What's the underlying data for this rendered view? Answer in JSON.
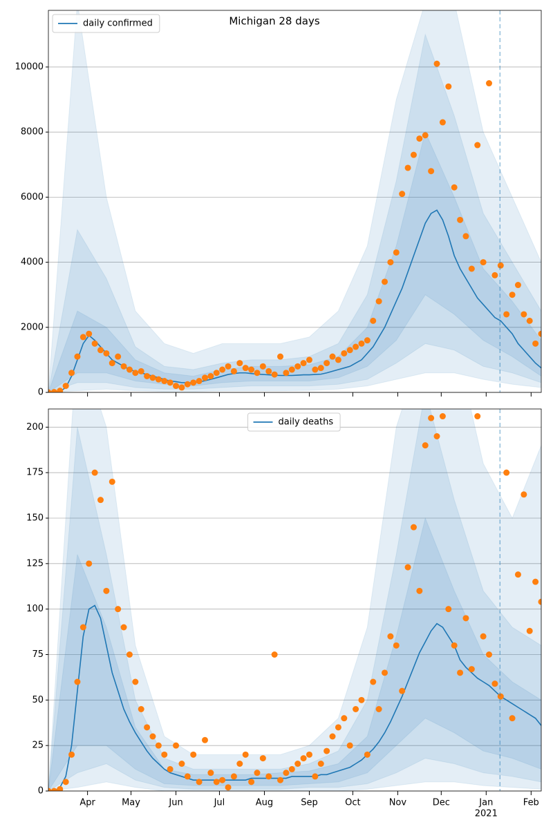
{
  "chart_data": [
    {
      "type": "line",
      "title": "Michigan 28 days",
      "x": [
        4,
        8,
        12,
        16,
        20,
        24,
        28,
        32,
        36,
        40,
        44,
        48,
        52,
        56,
        60,
        64,
        68,
        72,
        76,
        80,
        84,
        88,
        92,
        96,
        100,
        104,
        108,
        112,
        116,
        120,
        124,
        128,
        132,
        136,
        140,
        144,
        148,
        152,
        156,
        160,
        164,
        168,
        172,
        176,
        180,
        184,
        188,
        192,
        196,
        200,
        204,
        208,
        212,
        216,
        220,
        224,
        228,
        232,
        236,
        240,
        244,
        248,
        252,
        256,
        260,
        264,
        268,
        272,
        276,
        280,
        284,
        288,
        292,
        296,
        300,
        304,
        308,
        312,
        316,
        320,
        324,
        328,
        332,
        336,
        340,
        344
      ],
      "series": [
        {
          "name": "daily confirmed",
          "color": "#1f77b4",
          "values": [
            0,
            5,
            30,
            150,
            500,
            1000,
            1500,
            1750,
            1600,
            1400,
            1200,
            1000,
            900,
            800,
            700,
            650,
            600,
            550,
            500,
            450,
            400,
            350,
            330,
            300,
            300,
            300,
            320,
            360,
            400,
            450,
            500,
            550,
            580,
            600,
            600,
            580,
            560,
            550,
            540,
            530,
            520,
            520,
            520,
            530,
            540,
            540,
            550,
            560,
            600,
            650,
            700,
            750,
            800,
            900,
            1000,
            1200,
            1400,
            1700,
            2000,
            2400,
            2800,
            3200,
            3700,
            4200,
            4700,
            5200,
            5500,
            5600,
            5300,
            4800,
            4200,
            3800,
            3500,
            3200,
            2900,
            2700,
            2500,
            2300,
            2200,
            2000,
            1800,
            1500,
            1300,
            1100,
            900,
            750
          ]
        },
        {
          "color": "#ff7f0e",
          "marker": "o",
          "values": [
            0,
            10,
            50,
            200,
            600,
            1100,
            1700,
            1800,
            1500,
            1300,
            1200,
            900,
            1100,
            800,
            700,
            600,
            650,
            500,
            450,
            400,
            350,
            300,
            200,
            150,
            250,
            300,
            350,
            450,
            500,
            600,
            700,
            800,
            650,
            900,
            750,
            700,
            600,
            800,
            650,
            550,
            1100,
            600,
            700,
            800,
            900,
            1000,
            700,
            750,
            900,
            1100,
            1000,
            1200,
            1300,
            1400,
            1500,
            1600,
            2200,
            2800,
            3400,
            4000,
            4300,
            6100,
            6900,
            7300,
            7800,
            7900,
            6800,
            10100,
            8300,
            9400,
            6300,
            5300,
            4800,
            3800,
            7600,
            4000,
            9500,
            3600,
            3900,
            2400,
            3000,
            3300,
            2400,
            2200,
            1500,
            1800
          ]
        }
      ],
      "bands": {
        "color": "#1f77b4",
        "x": [
          4,
          24,
          44,
          64,
          84,
          104,
          124,
          144,
          164,
          184,
          204,
          224,
          244,
          264,
          284,
          304,
          324,
          344
        ],
        "layers": [
          {
            "lower": [
              0,
              50,
              100,
              50,
              30,
              30,
              50,
              50,
              50,
              60,
              100,
              200,
              400,
              600,
              600,
              400,
              250,
              150
            ],
            "upper": [
              0,
              12000,
              6000,
              2500,
              1500,
              1200,
              1500,
              1500,
              1500,
              1700,
              2500,
              4500,
              9000,
              12000,
              12000,
              8000,
              6000,
              4000
            ]
          },
          {
            "lower": [
              0,
              300,
              300,
              150,
              100,
              100,
              150,
              200,
              200,
              200,
              250,
              400,
              900,
              1500,
              1300,
              800,
              600,
              300
            ],
            "upper": [
              0,
              5000,
              3500,
              1400,
              800,
              700,
              900,
              1000,
              1000,
              1100,
              1500,
              3000,
              6500,
              11000,
              8500,
              5500,
              4000,
              2500
            ]
          },
          {
            "lower": [
              0,
              600,
              600,
              350,
              250,
              200,
              300,
              350,
              350,
              350,
              450,
              800,
              1600,
              3000,
              2400,
              1600,
              1100,
              500
            ],
            "upper": [
              0,
              2500,
              2000,
              1000,
              600,
              500,
              700,
              800,
              800,
              850,
              1100,
              2000,
              4500,
              8000,
              6000,
              3800,
              2800,
              1600
            ]
          }
        ]
      },
      "vline_x": 315.5,
      "xlim": [
        4,
        344
      ],
      "xticks": [
        {
          "value": 31,
          "label": "Apr"
        },
        {
          "value": 61,
          "label": "May"
        },
        {
          "value": 92,
          "label": "Jun"
        },
        {
          "value": 122,
          "label": "Jul"
        },
        {
          "value": 153,
          "label": "Aug"
        },
        {
          "value": 184,
          "label": "Sep"
        },
        {
          "value": 214,
          "label": "Oct"
        },
        {
          "value": 245,
          "label": "Nov"
        },
        {
          "value": 275,
          "label": "Dec"
        },
        {
          "value": 306,
          "label": "Jan"
        },
        {
          "value": 337,
          "label": "Feb"
        }
      ],
      "ylim": [
        0,
        11740
      ],
      "yticks": [
        0,
        2000,
        4000,
        6000,
        8000,
        10000
      ],
      "grid": true,
      "legend": "upper left"
    },
    {
      "type": "line",
      "x": [
        4,
        8,
        12,
        16,
        20,
        24,
        28,
        32,
        36,
        40,
        44,
        48,
        52,
        56,
        60,
        64,
        68,
        72,
        76,
        80,
        84,
        88,
        92,
        96,
        100,
        104,
        108,
        112,
        116,
        120,
        124,
        128,
        132,
        136,
        140,
        144,
        148,
        152,
        156,
        160,
        164,
        168,
        172,
        176,
        180,
        184,
        188,
        192,
        196,
        200,
        204,
        208,
        212,
        216,
        220,
        224,
        228,
        232,
        236,
        240,
        244,
        248,
        252,
        256,
        260,
        264,
        268,
        272,
        276,
        280,
        284,
        288,
        292,
        296,
        300,
        304,
        308,
        312,
        316,
        320,
        324,
        328,
        332,
        336,
        340,
        344
      ],
      "series": [
        {
          "name": "daily deaths",
          "color": "#1f77b4",
          "values": [
            0,
            0,
            2,
            8,
            25,
            55,
            85,
            100,
            102,
            95,
            80,
            65,
            55,
            45,
            38,
            32,
            27,
            22,
            18,
            15,
            12,
            10,
            9,
            8,
            7,
            6,
            6,
            6,
            6,
            6,
            6,
            6,
            6,
            6,
            6,
            7,
            7,
            7,
            7,
            7,
            7,
            7,
            8,
            8,
            8,
            8,
            8,
            9,
            9,
            10,
            11,
            12,
            13,
            15,
            17,
            20,
            23,
            27,
            32,
            38,
            45,
            52,
            60,
            68,
            76,
            82,
            88,
            92,
            90,
            85,
            80,
            72,
            68,
            65,
            62,
            60,
            58,
            55,
            52,
            50,
            48,
            46,
            44,
            42,
            40,
            36
          ]
        },
        {
          "color": "#ff7f0e",
          "marker": "o",
          "values": [
            0,
            0,
            1,
            5,
            20,
            60,
            90,
            125,
            175,
            160,
            110,
            170,
            100,
            90,
            75,
            60,
            45,
            35,
            30,
            25,
            20,
            12,
            25,
            15,
            8,
            20,
            5,
            28,
            10,
            5,
            6,
            2,
            8,
            15,
            20,
            5,
            10,
            18,
            8,
            75,
            6,
            10,
            12,
            15,
            18,
            20,
            8,
            15,
            22,
            30,
            35,
            40,
            25,
            45,
            50,
            20,
            60,
            45,
            65,
            85,
            80,
            55,
            123,
            145,
            110,
            190,
            205,
            195,
            206,
            100,
            80,
            65,
            95,
            67,
            206,
            85,
            75,
            59,
            52,
            175,
            40,
            119,
            163,
            88,
            115,
            104
          ]
        }
      ],
      "bands": {
        "color": "#1f77b4",
        "x": [
          4,
          24,
          44,
          64,
          84,
          104,
          124,
          144,
          164,
          184,
          204,
          224,
          244,
          264,
          284,
          304,
          324,
          344
        ],
        "layers": [
          {
            "lower": [
              0,
              2,
              5,
              2,
              0,
              0,
              0,
              0,
              0,
              0,
              0,
              1,
              3,
              5,
              5,
              3,
              2,
              1
            ],
            "upper": [
              0,
              250,
              200,
              80,
              30,
              20,
              20,
              20,
              20,
              25,
              40,
              90,
              200,
              250,
              250,
              180,
              150,
              190
            ]
          },
          {
            "lower": [
              0,
              10,
              15,
              6,
              2,
              1,
              1,
              1,
              1,
              2,
              2,
              4,
              10,
              18,
              15,
              10,
              8,
              5
            ],
            "upper": [
              0,
              200,
              130,
              50,
              18,
              12,
              12,
              12,
              12,
              15,
              22,
              50,
              130,
              220,
              160,
              110,
              90,
              80
            ]
          },
          {
            "lower": [
              0,
              25,
              25,
              12,
              4,
              3,
              3,
              3,
              3,
              4,
              5,
              10,
              25,
              40,
              32,
              22,
              18,
              12
            ],
            "upper": [
              0,
              130,
              90,
              35,
              12,
              9,
              9,
              9,
              10,
              11,
              15,
              30,
              85,
              150,
              110,
              75,
              60,
              50
            ]
          }
        ]
      },
      "vline_x": 315.5,
      "xlim": [
        4,
        344
      ],
      "xticks": [
        {
          "value": 31,
          "label": "Apr"
        },
        {
          "value": 61,
          "label": "May"
        },
        {
          "value": 92,
          "label": "Jun"
        },
        {
          "value": 122,
          "label": "Jul"
        },
        {
          "value": 153,
          "label": "Aug"
        },
        {
          "value": 184,
          "label": "Sep"
        },
        {
          "value": 214,
          "label": "Oct"
        },
        {
          "value": 245,
          "label": "Nov"
        },
        {
          "value": 275,
          "label": "Dec"
        },
        {
          "value": 306,
          "label": "Jan"
        },
        {
          "value": 337,
          "label": "Feb"
        }
      ],
      "x_year_label": {
        "value": 306,
        "label": "2021"
      },
      "ylim": [
        0,
        210
      ],
      "yticks": [
        0,
        25,
        50,
        75,
        100,
        125,
        150,
        175,
        200
      ],
      "grid": true,
      "legend": "upper center"
    }
  ]
}
